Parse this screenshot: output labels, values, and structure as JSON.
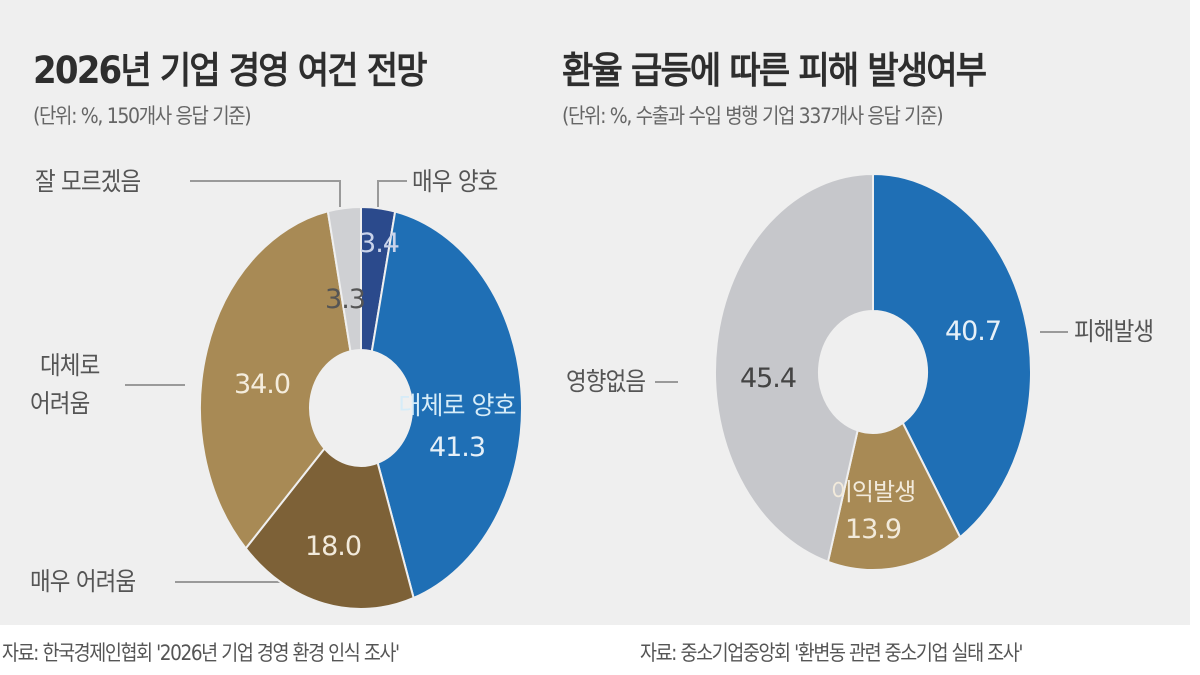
{
  "left_chart": {
    "title": "2026년 기업 경영 여건 전망",
    "subtitle": "(단위: %, 150개사 응답 기준)",
    "source": "자료: 한국경제인협회 '2026년 기업 경영 환경 인식 조사'",
    "labels": {
      "dont_know": "잘 모르겠음",
      "very_good": "매우 양호",
      "mostly_hard_line1": "대체로",
      "mostly_hard_line2": "어려움",
      "mostly_good": "대체로 양호",
      "very_hard": "매우 어려움"
    },
    "values": {
      "very_good": "3.4",
      "mostly_good": "41.3",
      "very_hard": "18.0",
      "mostly_hard": "34.0",
      "dont_know": "3.3"
    }
  },
  "right_chart": {
    "title": "환율 급등에 따른 피해 발생여부",
    "subtitle": "(단위: %, 수출과 수입 병행 기업 337개사 응답 기준)",
    "source": "자료: 중소기업중앙회 '환변동 관련 중소기업 실태 조사'",
    "labels": {
      "damage": "피해발생",
      "profit": "이익발생",
      "no_effect": "영향없음"
    },
    "values": {
      "damage": "40.7",
      "profit": "13.9",
      "no_effect": "45.4"
    }
  },
  "colors": {
    "panel_bg": "#efefef",
    "blue": "#1f6fb5",
    "navy": "#2b4a8c",
    "tan": "#a88a55",
    "dark_brown": "#7d6137",
    "gray": "#c6c7cb",
    "light_gray": "#cfd0d3"
  },
  "chart_data": [
    {
      "type": "pie",
      "subtype": "donut",
      "title": "2026년 기업 경영 여건 전망",
      "subtitle": "(단위: %, 150개사 응답 기준)",
      "unit": "%",
      "categories": [
        "매우 양호",
        "대체로 양호",
        "매우 어려움",
        "대체로 어려움",
        "잘 모르겠음"
      ],
      "values": [
        3.4,
        41.3,
        18.0,
        34.0,
        3.3
      ],
      "colors": [
        "#2b4a8c",
        "#1f6fb5",
        "#7d6137",
        "#a88a55",
        "#cfd0d3"
      ],
      "start_angle": "12 o'clock, clockwise",
      "source": "자료: 한국경제인협회 '2026년 기업 경영 환경 인식 조사'"
    },
    {
      "type": "pie",
      "subtype": "donut",
      "title": "환율 급등에 따른 피해 발생여부",
      "subtitle": "(단위: %, 수출과 수입 병행 기업 337개사 응답 기준)",
      "unit": "%",
      "categories": [
        "피해발생",
        "이익발생",
        "영향없음"
      ],
      "values": [
        40.7,
        13.9,
        45.4
      ],
      "colors": [
        "#1f6fb5",
        "#a88a55",
        "#c6c7cb"
      ],
      "start_angle": "12 o'clock, clockwise",
      "source": "자료: 중소기업중앙회 '환변동 관련 중소기업 실태 조사'"
    }
  ]
}
